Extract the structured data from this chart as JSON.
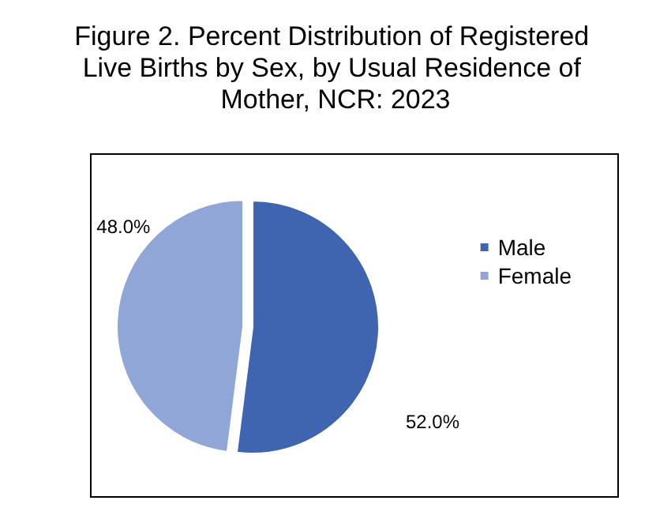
{
  "chart_data": {
    "type": "pie",
    "title": "Figure 2. Percent Distribution of Registered Live Births by Sex, by Usual Residence of Mother, NCR: 2023",
    "categories": [
      "Male",
      "Female"
    ],
    "values": [
      52.0,
      48.0
    ],
    "colors": [
      "#3f64b0",
      "#8fa6d6"
    ],
    "value_labels": [
      "52.0%",
      "48.0%"
    ],
    "legend": "right"
  }
}
